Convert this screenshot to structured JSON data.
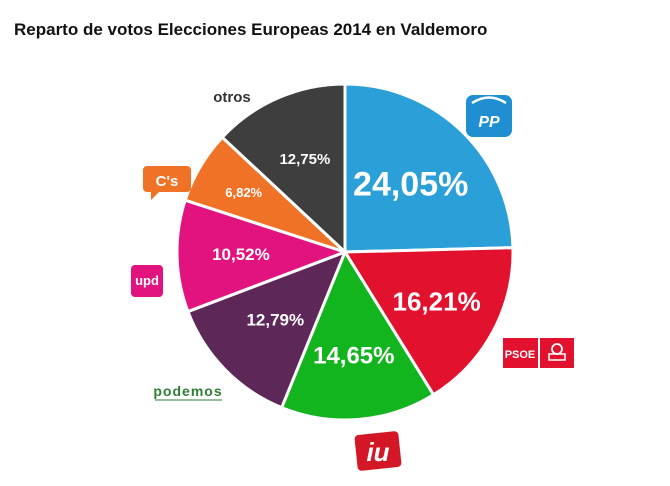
{
  "chart_data": {
    "type": "pie",
    "title": "Reparto de votos Elecciones Europeas 2014 en Valdemoro",
    "slices": [
      {
        "party": "PP",
        "label": "24,05%",
        "value": 24.05,
        "color": "#2a9fd8",
        "logo_text": "PP"
      },
      {
        "party": "PSOE",
        "label": "16,21%",
        "value": 16.21,
        "color": "#e2112d",
        "logo_text": "PSOE"
      },
      {
        "party": "IU",
        "label": "14,65%",
        "value": 14.65,
        "color": "#13b51f",
        "logo_text": "iu"
      },
      {
        "party": "Podemos",
        "label": "12,79%",
        "value": 12.79,
        "color": "#5d2758",
        "logo_text": "podemos"
      },
      {
        "party": "UPyD",
        "label": "10,52%",
        "value": 10.52,
        "color": "#e2137e",
        "logo_text": "upd"
      },
      {
        "party": "C's",
        "label": "6,82%",
        "value": 6.82,
        "color": "#ef7227",
        "logo_text": "C's"
      },
      {
        "party": "otros",
        "label": "12,75%",
        "value": 12.75,
        "color": "#3e3e3e",
        "logo_text": "otros"
      }
    ]
  }
}
